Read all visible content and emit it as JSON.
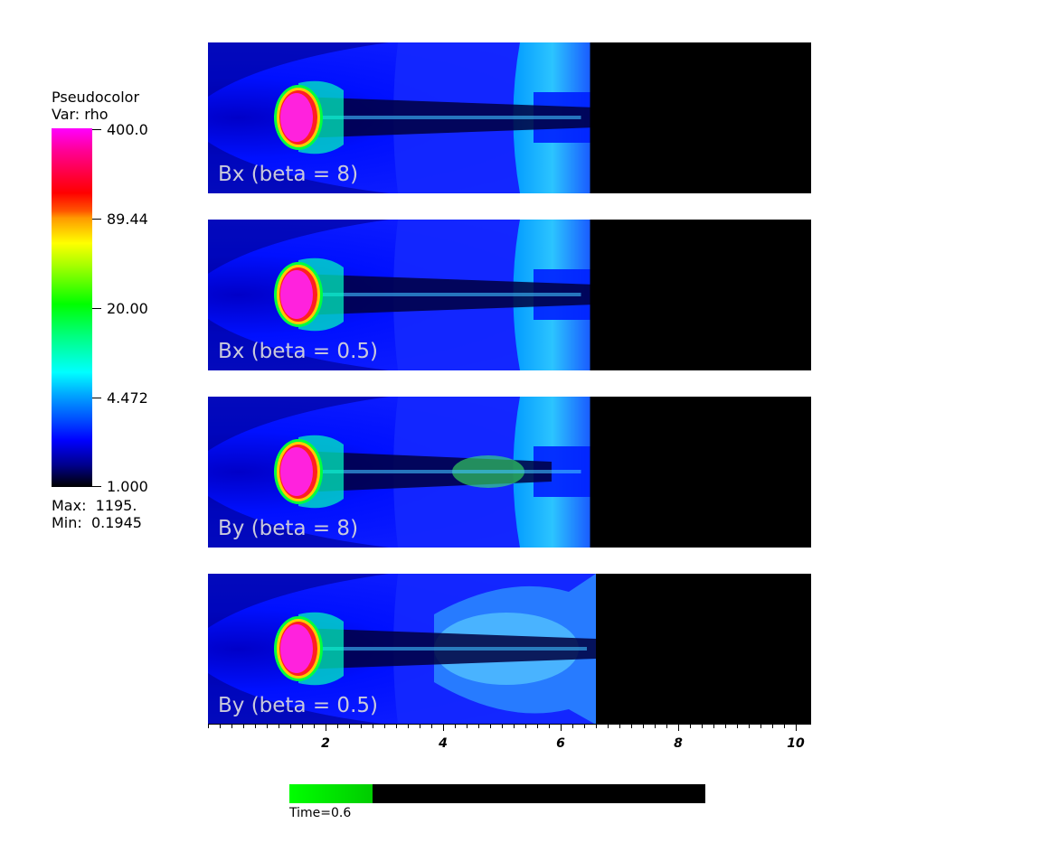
{
  "legend": {
    "title": "Pseudocolor",
    "var": "Var: rho",
    "ticks": [
      "400.0",
      "89.44",
      "20.00",
      "4.472",
      "1.000"
    ],
    "max": "Max:  1195.",
    "min": "Min:  0.1945"
  },
  "panels": [
    {
      "label": "Bx (beta = 8)",
      "shock_front": 6.5
    },
    {
      "label": "Bx (beta = 0.5)",
      "shock_front": 6.5
    },
    {
      "label": "By (beta = 8)",
      "shock_front": 6.5
    },
    {
      "label": "By (beta = 0.5)",
      "shock_front": 6.6
    }
  ],
  "x_axis": {
    "labels": [
      "2",
      "4",
      "6",
      "8",
      "10"
    ],
    "min": 0,
    "max": 10.25
  },
  "time": {
    "label": "Time=0.6",
    "progress": 0.2
  },
  "colors": {
    "background_blue": "#0000ff",
    "dark": "#000000",
    "clump": "#ff22dd"
  }
}
